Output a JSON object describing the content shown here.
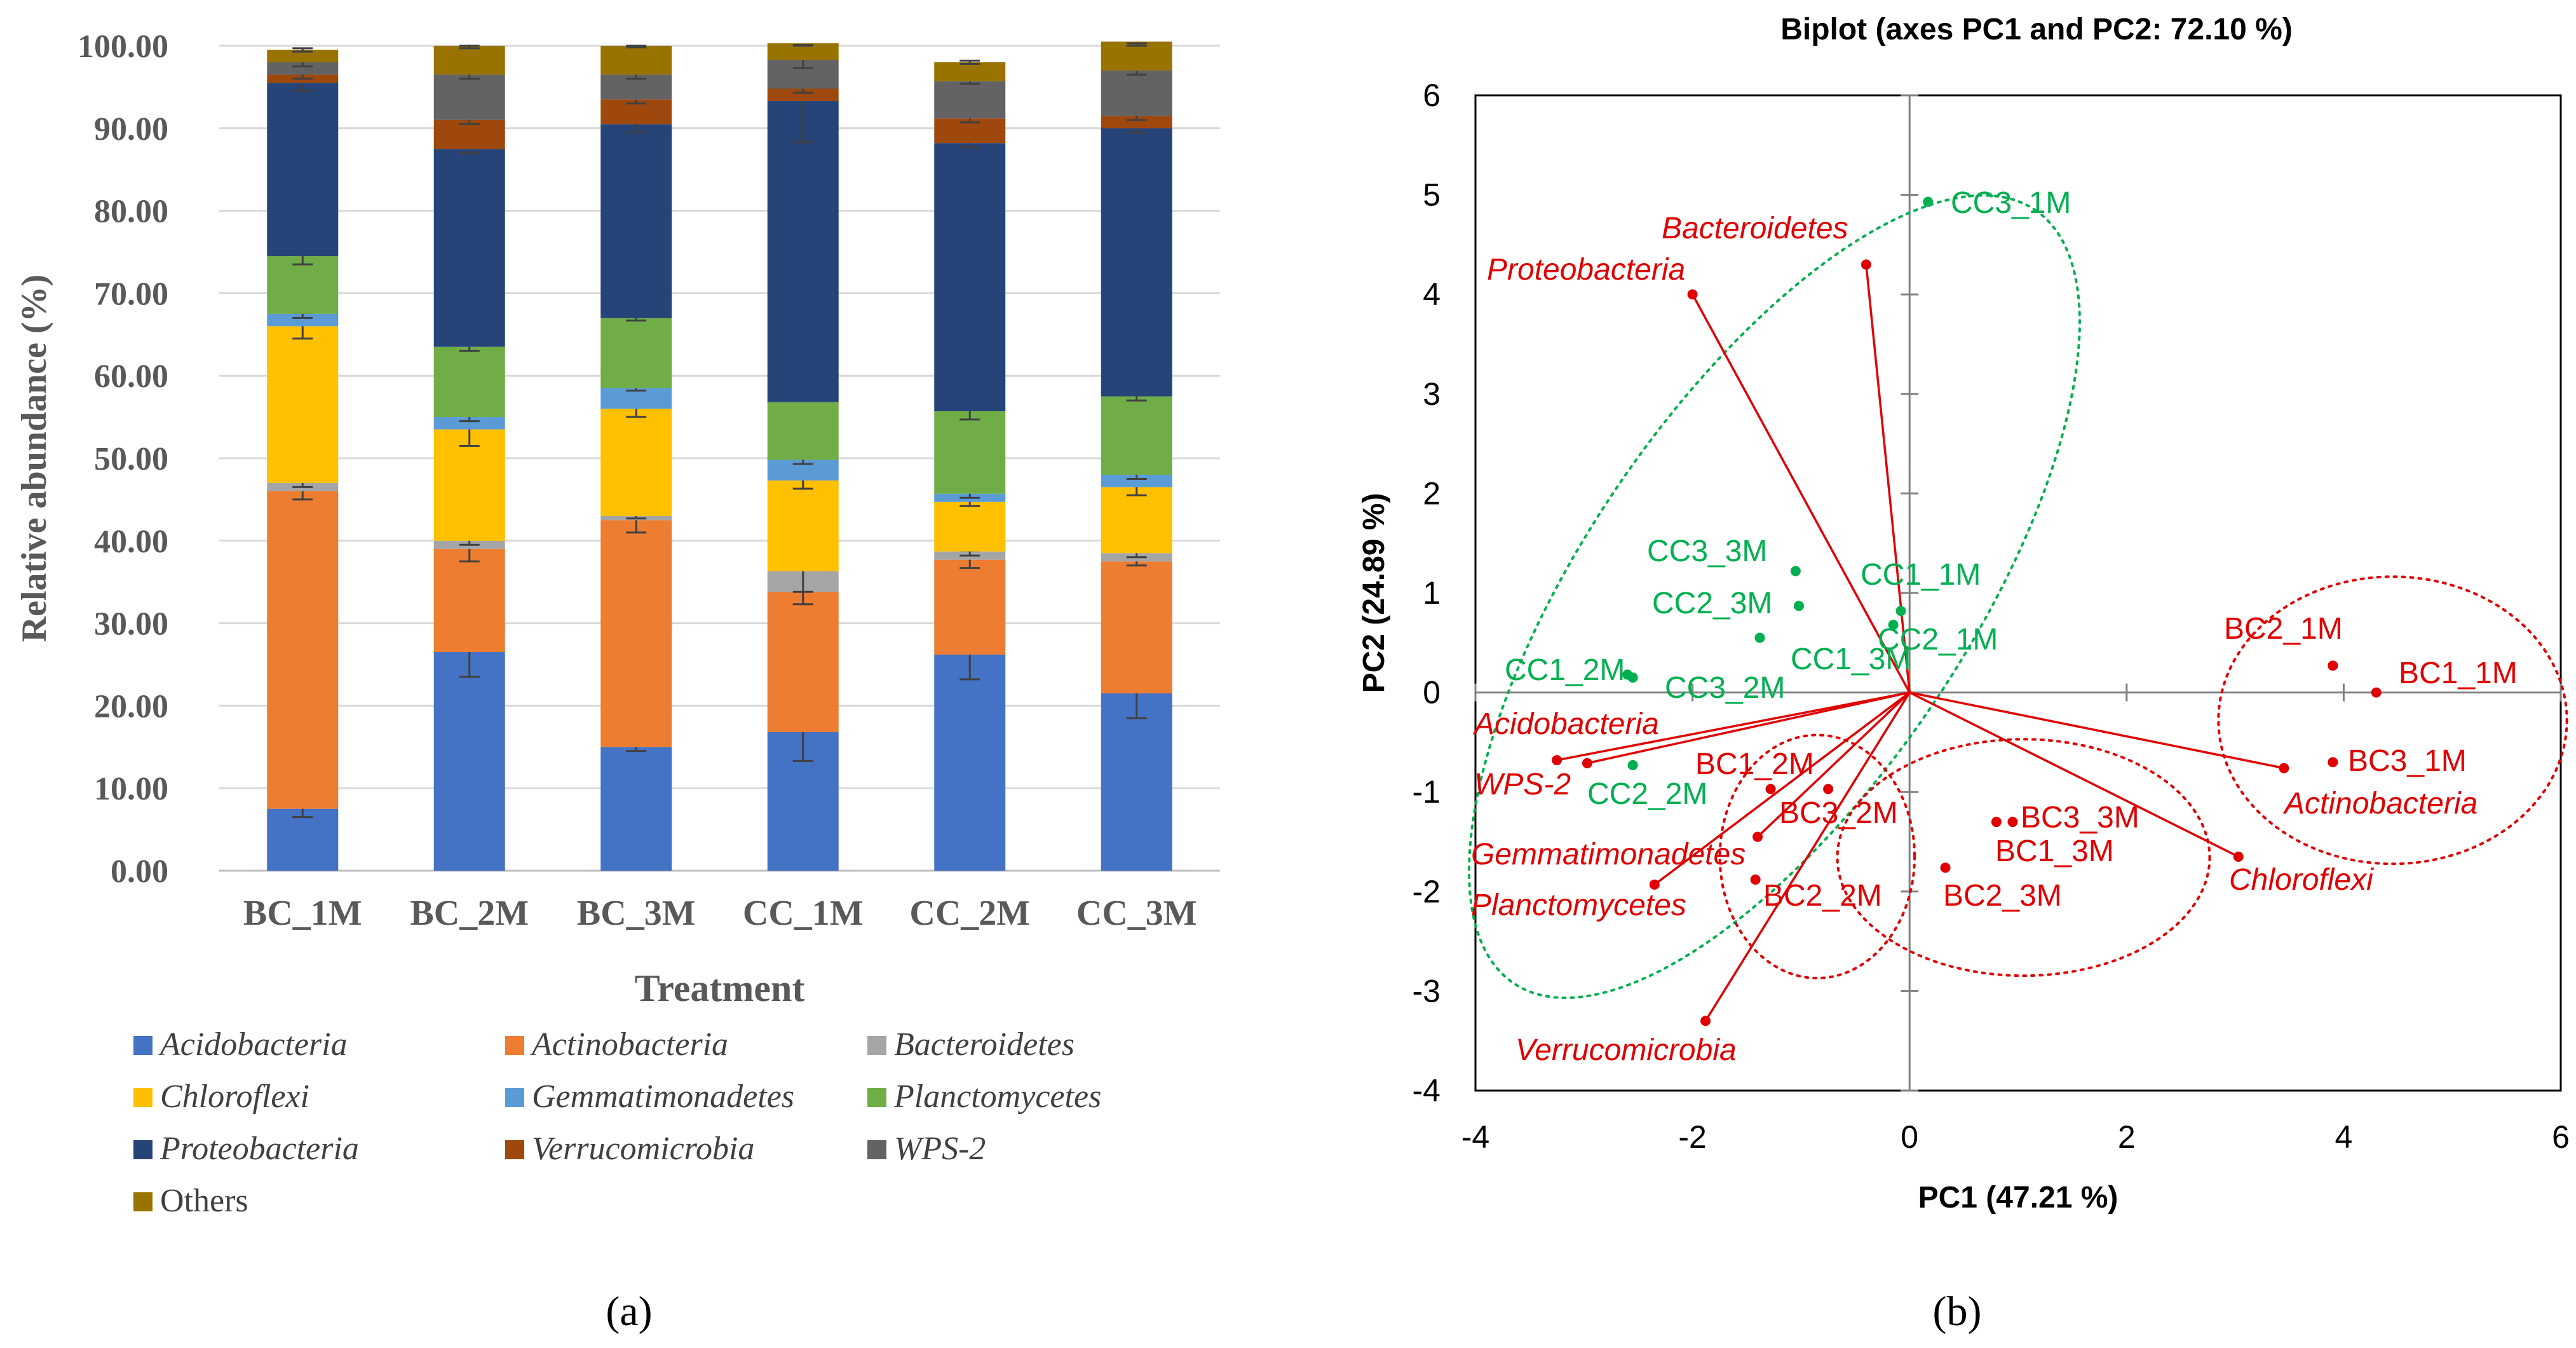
{
  "chart_data": [
    {
      "type": "bar",
      "stacked": true,
      "panel_label": "(a)",
      "xlabel": "Treatment",
      "ylabel": "Relative abundance (%)",
      "ylim": [
        0,
        100
      ],
      "yticks": [
        "0.00",
        "10.00",
        "20.00",
        "30.00",
        "40.00",
        "50.00",
        "60.00",
        "70.00",
        "80.00",
        "90.00",
        "100.00"
      ],
      "grid": true,
      "legend_position": "bottom",
      "categories": [
        "BC_1M",
        "BC_2M",
        "BC_3M",
        "CC_1M",
        "CC_2M",
        "CC_3M"
      ],
      "series": [
        {
          "name": "Acidobacteria",
          "italic": true,
          "color": "#4472C4",
          "values": [
            7.5,
            26.5,
            15.0,
            16.8,
            26.2,
            21.5
          ],
          "errors": [
            1.0,
            3.0,
            0.5,
            3.5,
            3.0,
            3.0
          ]
        },
        {
          "name": "Actinobacteria",
          "italic": true,
          "color": "#ED7D31",
          "values": [
            38.5,
            12.5,
            27.5,
            17.0,
            11.5,
            16.0
          ],
          "errors": [
            1.0,
            1.5,
            1.5,
            1.5,
            1.0,
            0.5
          ]
        },
        {
          "name": "Bacteroidetes",
          "italic": true,
          "color": "#A5A5A5",
          "values": [
            1.0,
            1.0,
            0.5,
            2.5,
            1.0,
            1.0
          ],
          "errors": [
            0.5,
            0.5,
            0.3,
            2.5,
            0.5,
            0.5
          ]
        },
        {
          "name": "Chloroflexi",
          "italic": true,
          "color": "#FFC000",
          "values": [
            19.0,
            13.5,
            13.0,
            11.0,
            6.0,
            8.0
          ],
          "errors": [
            1.5,
            2.0,
            1.0,
            1.0,
            0.5,
            1.0
          ]
        },
        {
          "name": "Gemmatimonadetes",
          "italic": true,
          "color": "#5B9BD5",
          "values": [
            1.5,
            1.5,
            2.5,
            2.5,
            1.0,
            1.5
          ],
          "errors": [
            0.5,
            0.5,
            0.3,
            0.5,
            0.5,
            0.5
          ]
        },
        {
          "name": "Planctomycetes",
          "italic": true,
          "color": "#70AD47",
          "values": [
            7.0,
            8.5,
            8.5,
            7.0,
            10.0,
            9.5
          ],
          "errors": [
            1.0,
            0.5,
            0.3,
            0.0,
            1.0,
            0.5
          ]
        },
        {
          "name": "Proteobacteria",
          "italic": true,
          "color": "#264478",
          "values": [
            21.0,
            24.0,
            23.5,
            36.5,
            32.5,
            32.5
          ],
          "errors": [
            1.0,
            0.5,
            1.0,
            5.0,
            0.5,
            0.5
          ]
        },
        {
          "name": "Verrucomicrobia",
          "italic": true,
          "color": "#9E480E",
          "values": [
            1.0,
            3.5,
            3.0,
            1.5,
            3.0,
            1.5
          ],
          "errors": [
            0.5,
            0.5,
            0.5,
            0.5,
            0.5,
            0.5
          ]
        },
        {
          "name": "WPS-2",
          "italic": true,
          "color": "#636363",
          "values": [
            1.5,
            5.5,
            3.0,
            3.5,
            4.5,
            5.5
          ],
          "errors": [
            0.5,
            0.5,
            0.5,
            1.0,
            0.3,
            0.5
          ]
        },
        {
          "name": "Others",
          "italic": false,
          "color": "#997300",
          "values": [
            1.5,
            3.5,
            3.5,
            2.0,
            2.3,
            3.5
          ],
          "errors": [
            0.2,
            0.3,
            0.2,
            0.2,
            0.2,
            0.2
          ]
        }
      ]
    },
    {
      "type": "scatter",
      "biplot": true,
      "panel_label": "(b)",
      "title": "Biplot (axes PC1 and PC2: 72.10 %)",
      "xlabel": "PC1 (47.21 %)",
      "ylabel": "PC2 (24.89 %)",
      "xlim": [
        -4,
        6
      ],
      "ylim": [
        -4,
        6
      ],
      "xticks": [
        -4,
        -2,
        0,
        2,
        4,
        6
      ],
      "yticks": [
        -4,
        -3,
        -2,
        -1,
        0,
        1,
        2,
        3,
        4,
        5,
        6
      ],
      "grid": false,
      "colors": {
        "cc": "#00B050",
        "bc": "#E00000"
      },
      "observations": [
        {
          "name": "CC3_1M",
          "x": 0.17,
          "y": 4.93,
          "group": "cc"
        },
        {
          "name": "CC1_1M",
          "x": -0.08,
          "y": 0.82,
          "group": "cc"
        },
        {
          "name": "CC2_1M",
          "x": -0.15,
          "y": 0.68,
          "group": "cc"
        },
        {
          "name": "CC3_3M",
          "x": -1.05,
          "y": 1.22,
          "group": "cc"
        },
        {
          "name": "CC2_3M",
          "x": -1.02,
          "y": 0.87,
          "group": "cc"
        },
        {
          "name": "CC1_3M",
          "x": -1.38,
          "y": 0.55,
          "group": "cc"
        },
        {
          "name": "CC1_2M",
          "x": -2.6,
          "y": 0.18,
          "group": "cc"
        },
        {
          "name": "CC3_2M",
          "x": -2.55,
          "y": 0.15,
          "group": "cc"
        },
        {
          "name": "CC2_2M",
          "x": -2.55,
          "y": -0.73,
          "group": "cc"
        },
        {
          "name": "BC2_1M",
          "x": 3.9,
          "y": 0.27,
          "group": "bc"
        },
        {
          "name": "BC1_1M",
          "x": 4.3,
          "y": 0.0,
          "group": "bc"
        },
        {
          "name": "BC3_1M",
          "x": 3.9,
          "y": -0.7,
          "group": "bc"
        },
        {
          "name": "BC1_2M",
          "x": -1.28,
          "y": -0.97,
          "group": "bc"
        },
        {
          "name": "BC3_2M",
          "x": -0.75,
          "y": -0.97,
          "group": "bc"
        },
        {
          "name": "BC2_2M",
          "x": -1.42,
          "y": -1.88,
          "group": "bc"
        },
        {
          "name": "BC3_3M",
          "x": 0.8,
          "y": -1.3,
          "group": "bc"
        },
        {
          "name": "BC1_3M",
          "x": 0.95,
          "y": -1.3,
          "group": "bc"
        },
        {
          "name": "BC2_3M",
          "x": 0.33,
          "y": -1.76,
          "group": "bc"
        }
      ],
      "variables": [
        {
          "name": "Bacteroidetes",
          "x": -0.4,
          "y": 4.3
        },
        {
          "name": "Proteobacteria",
          "x": -2.0,
          "y": 4.0
        },
        {
          "name": "Acidobacteria",
          "x": -3.25,
          "y": -0.68
        },
        {
          "name": "WPS-2",
          "x": -2.97,
          "y": -0.71
        },
        {
          "name": "Gemmatimonadetes",
          "x": -1.4,
          "y": -1.45
        },
        {
          "name": "Planctomycetes",
          "x": -2.35,
          "y": -1.93
        },
        {
          "name": "Verrucomicrobia",
          "x": -1.88,
          "y": -3.3
        },
        {
          "name": "Actinobacteria",
          "x": 3.45,
          "y": -0.76
        },
        {
          "name": "Chloroflexi",
          "x": 3.03,
          "y": -1.65
        }
      ],
      "groups": [
        {
          "name": "CC",
          "members": [
            "CC3_1M",
            "CC1_1M",
            "CC2_1M",
            "CC3_3M",
            "CC2_3M",
            "CC1_3M",
            "CC1_2M",
            "CC3_2M",
            "CC2_2M"
          ]
        },
        {
          "name": "BC_1M",
          "members": [
            "BC1_1M",
            "BC2_1M",
            "BC3_1M"
          ]
        },
        {
          "name": "BC_2M",
          "members": [
            "BC1_2M",
            "BC2_2M",
            "BC3_2M"
          ]
        },
        {
          "name": "BC_3M",
          "members": [
            "BC1_3M",
            "BC2_3M",
            "BC3_3M"
          ]
        }
      ]
    }
  ]
}
